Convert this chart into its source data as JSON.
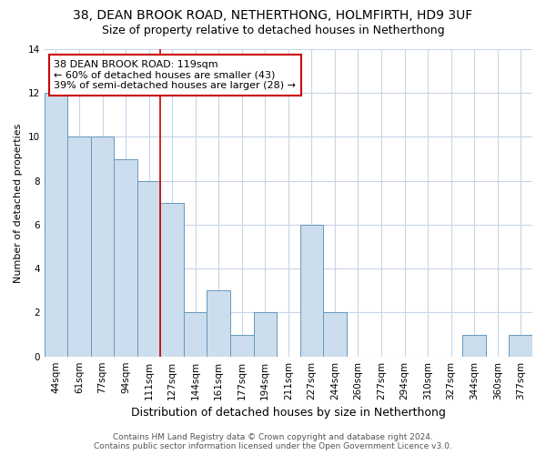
{
  "title_line1": "38, DEAN BROOK ROAD, NETHERTHONG, HOLMFIRTH, HD9 3UF",
  "title_line2": "Size of property relative to detached houses in Netherthong",
  "xlabel": "Distribution of detached houses by size in Netherthong",
  "ylabel": "Number of detached properties",
  "categories": [
    "44sqm",
    "61sqm",
    "77sqm",
    "94sqm",
    "111sqm",
    "127sqm",
    "144sqm",
    "161sqm",
    "177sqm",
    "194sqm",
    "211sqm",
    "227sqm",
    "244sqm",
    "260sqm",
    "277sqm",
    "294sqm",
    "310sqm",
    "327sqm",
    "344sqm",
    "360sqm",
    "377sqm"
  ],
  "values": [
    12,
    10,
    10,
    9,
    8,
    7,
    2,
    3,
    1,
    2,
    0,
    6,
    2,
    0,
    0,
    0,
    0,
    0,
    1,
    0,
    1
  ],
  "bar_color": "#ccdded",
  "bar_edge_color": "#6699bb",
  "annotation_text": "38 DEAN BROOK ROAD: 119sqm\n← 60% of detached houses are smaller (43)\n39% of semi-detached houses are larger (28) →",
  "annotation_box_facecolor": "#ffffff",
  "annotation_border_color": "#cc0000",
  "vline_color": "#cc0000",
  "vline_x": 4.5,
  "ylim": [
    0,
    14
  ],
  "yticks": [
    0,
    2,
    4,
    6,
    8,
    10,
    12,
    14
  ],
  "background_color": "#ffffff",
  "plot_bg_color": "#ffffff",
  "grid_color": "#c8d4e8",
  "footer_text": "Contains HM Land Registry data © Crown copyright and database right 2024.\nContains public sector information licensed under the Open Government Licence v3.0.",
  "title_fontsize": 10,
  "subtitle_fontsize": 9,
  "xlabel_fontsize": 9,
  "ylabel_fontsize": 8,
  "tick_fontsize": 7.5,
  "annotation_fontsize": 8,
  "footer_fontsize": 6.5
}
